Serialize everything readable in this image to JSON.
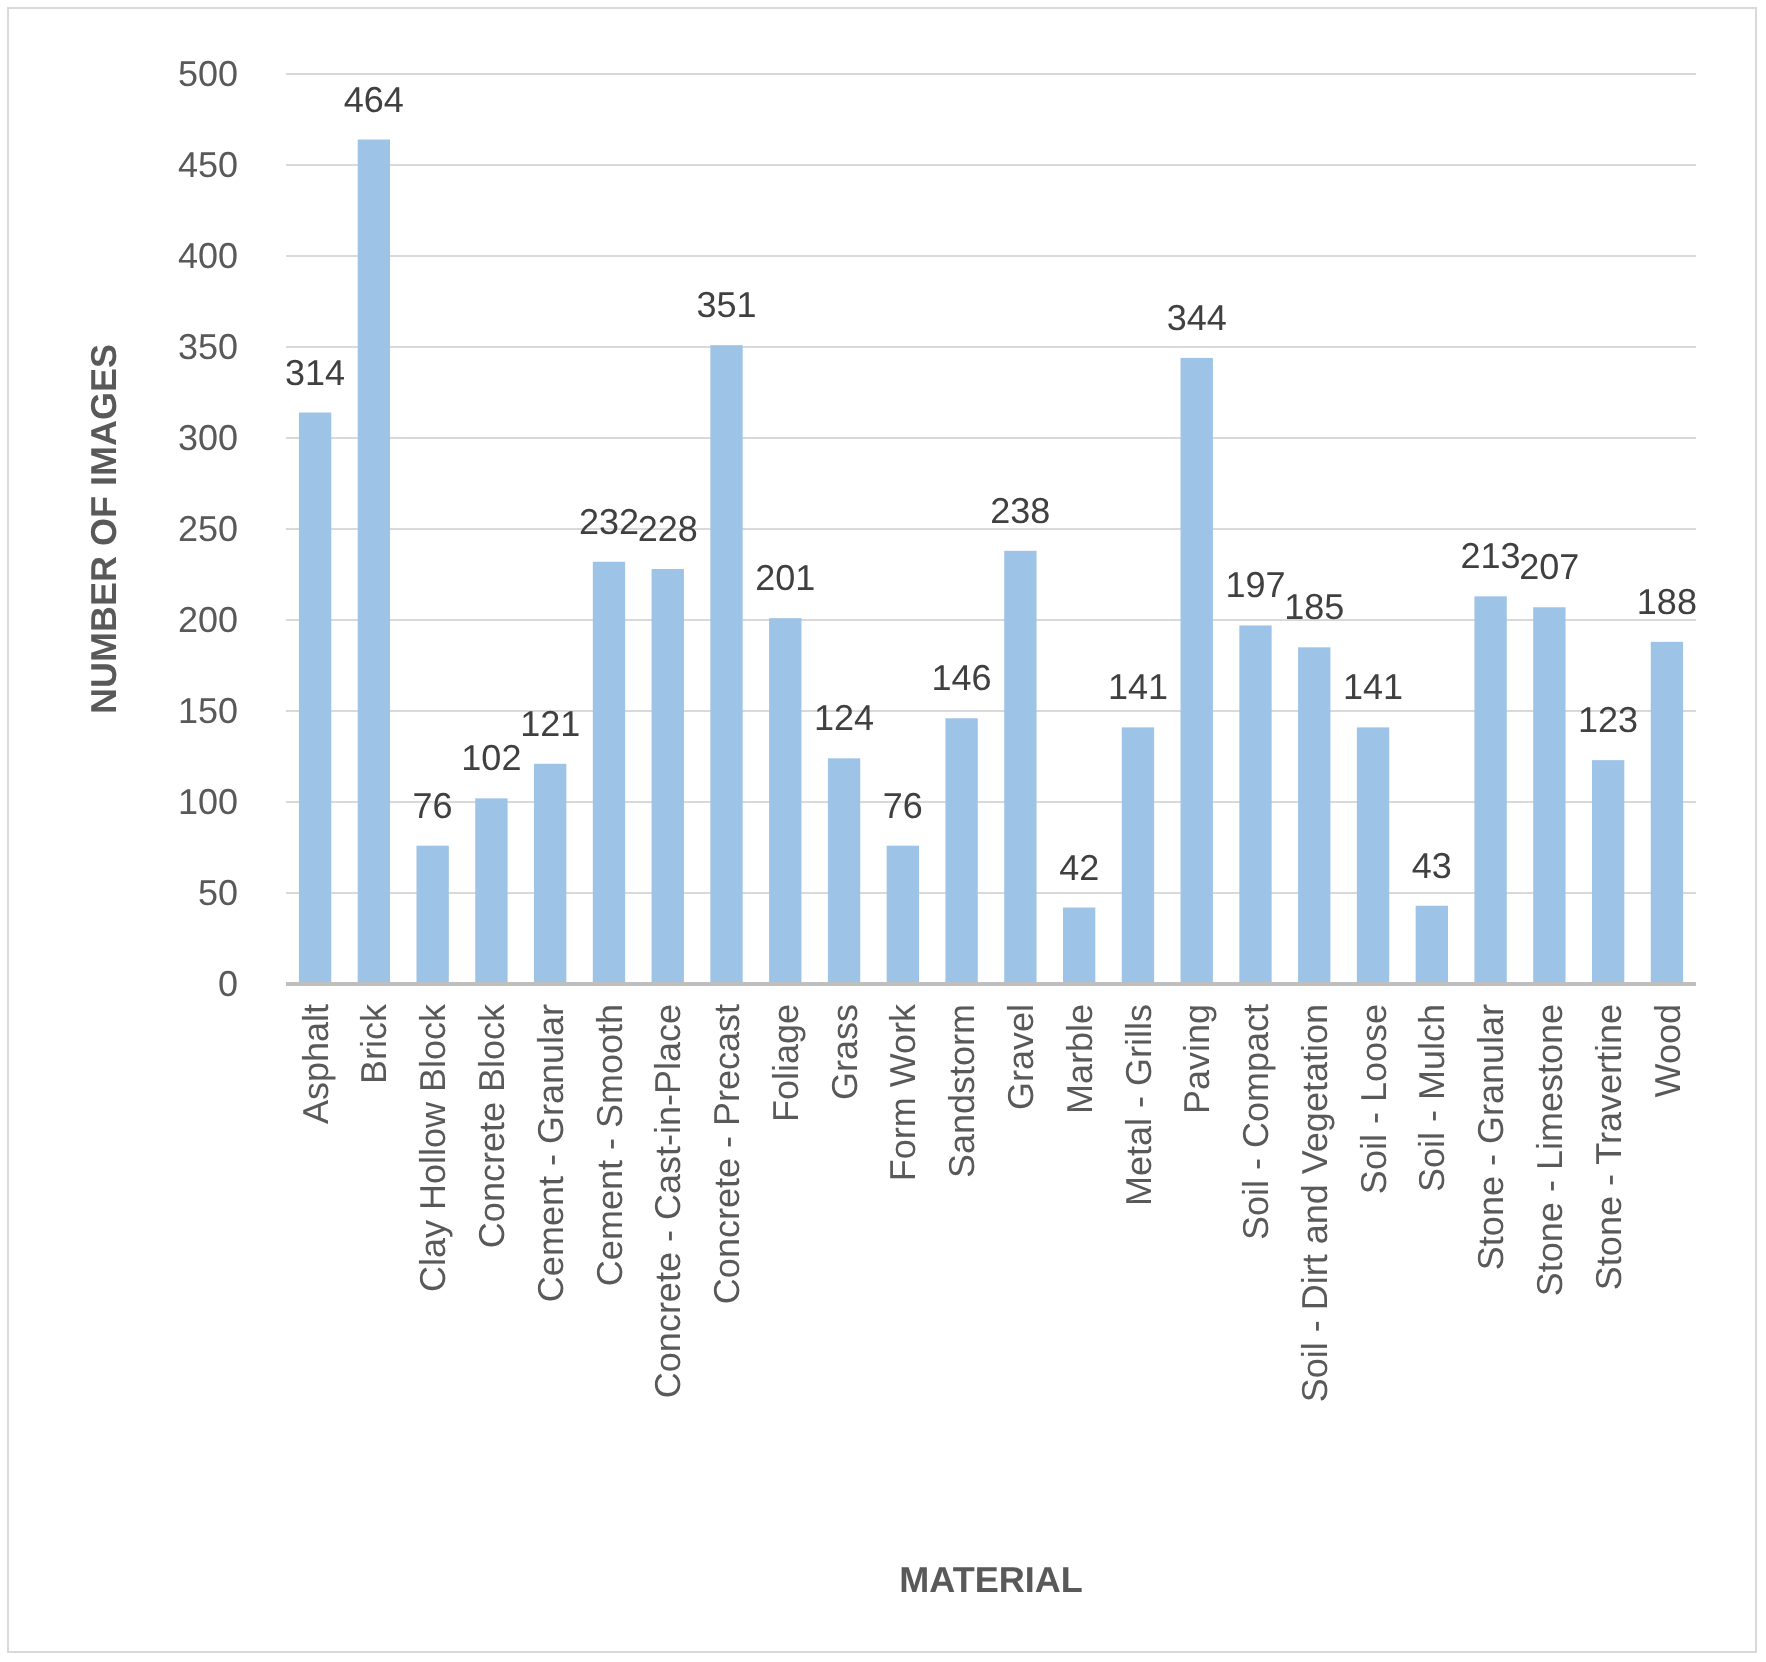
{
  "chart_data": {
    "type": "bar",
    "xlabel": "MATERIAL",
    "ylabel": "NUMBER OF IMAGES",
    "categories": [
      "Asphalt",
      "Brick",
      "Clay Hollow Block",
      "Concrete Block",
      "Cement - Granular",
      "Cement - Smooth",
      "Concrete - Cast-in-Place",
      "Concrete - Precast",
      "Foliage",
      "Grass",
      "Form Work",
      "Sandstorm",
      "Gravel",
      "Marble",
      "Metal - Grills",
      "Paving",
      "Soil - Compact",
      "Soil - Dirt and Vegetation",
      "Soil - Loose",
      "Soil - Mulch",
      "Stone - Granular",
      "Stone - Limestone",
      "Stone - Travertine",
      "Wood"
    ],
    "values": [
      314,
      464,
      76,
      102,
      121,
      232,
      228,
      351,
      201,
      124,
      76,
      146,
      238,
      42,
      141,
      344,
      197,
      185,
      141,
      43,
      213,
      207,
      123,
      188
    ],
    "color": "#9dc3e6",
    "ylim": [
      0,
      500
    ],
    "yticks": [
      0,
      50,
      100,
      150,
      200,
      250,
      300,
      350,
      400,
      450,
      500
    ],
    "grid": "y",
    "data_labels": true
  }
}
